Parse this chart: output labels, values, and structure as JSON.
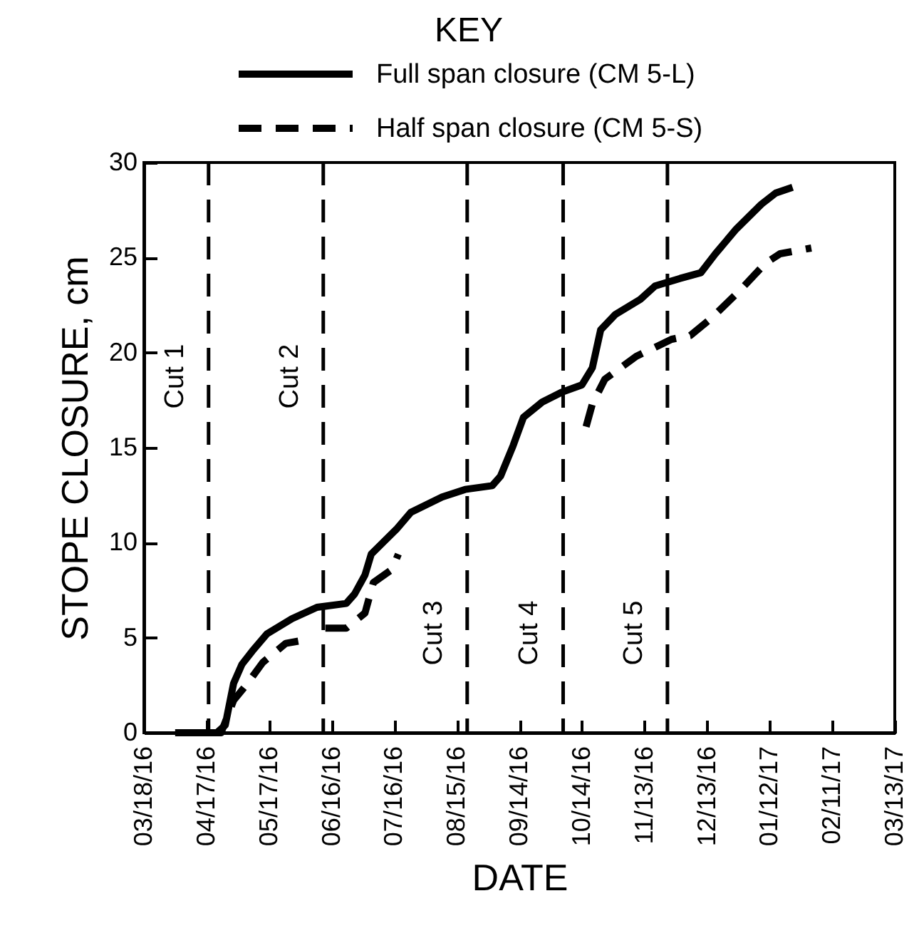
{
  "chart_data": {
    "type": "line",
    "legend_title": "KEY",
    "xlabel": "DATE",
    "ylabel": "STOPE CLOSURE, cm",
    "xlim": [
      "2016-03-18",
      "2017-03-13"
    ],
    "xticks": [
      {
        "value": "2016-03-18",
        "label": "03/18/16"
      },
      {
        "value": "2016-04-17",
        "label": "04/17/16"
      },
      {
        "value": "2016-05-17",
        "label": "05/17/16"
      },
      {
        "value": "2016-06-16",
        "label": "06/16/16"
      },
      {
        "value": "2016-07-16",
        "label": "07/16/16"
      },
      {
        "value": "2016-08-15",
        "label": "08/15/16"
      },
      {
        "value": "2016-09-14",
        "label": "09/14/16"
      },
      {
        "value": "2016-10-14",
        "label": "10/14/16"
      },
      {
        "value": "2016-11-13",
        "label": "11/13/16"
      },
      {
        "value": "2016-12-13",
        "label": "12/13/16"
      },
      {
        "value": "2017-01-12",
        "label": "01/12/17"
      },
      {
        "value": "2017-02-11",
        "label": "02/11/17"
      },
      {
        "value": "2017-03-13",
        "label": "03/13/17"
      }
    ],
    "ylim": [
      0,
      30
    ],
    "yticks": [
      0,
      5,
      10,
      15,
      20,
      25,
      30
    ],
    "grid": false,
    "legend": "top",
    "marker": "none",
    "series": [
      {
        "name": "Full span closure (CM 5-L)",
        "color": "#000000",
        "line_style": "solid",
        "x": [
          "2016-04-02",
          "2016-04-22",
          "2016-04-26",
          "2016-04-30",
          "2016-05-04",
          "2016-05-09",
          "2016-05-16",
          "2016-05-28",
          "2016-06-09",
          "2016-06-23",
          "2016-06-27",
          "2016-07-02",
          "2016-07-05",
          "2016-07-17",
          "2016-07-24",
          "2016-08-08",
          "2016-08-19",
          "2016-09-01",
          "2016-09-05",
          "2016-09-11",
          "2016-09-16",
          "2016-09-25",
          "2016-10-04",
          "2016-10-14",
          "2016-10-19",
          "2016-10-23",
          "2016-10-30",
          "2016-11-11",
          "2016-11-18",
          "2016-11-30",
          "2016-12-10",
          "2016-12-17",
          "2016-12-27",
          "2017-01-08",
          "2017-01-15",
          "2017-01-23"
        ],
        "values": [
          0,
          0,
          0.4,
          2.6,
          3.6,
          4.3,
          5.2,
          6.0,
          6.6,
          6.8,
          7.3,
          8.3,
          9.4,
          10.7,
          11.6,
          12.4,
          12.8,
          13.0,
          13.5,
          15.1,
          16.6,
          17.4,
          17.9,
          18.3,
          19.2,
          21.2,
          22.0,
          22.8,
          23.5,
          23.9,
          24.2,
          25.2,
          26.5,
          27.8,
          28.4,
          28.7
        ]
      },
      {
        "name": "Half span closure (CM 5-S)",
        "color": "#000000",
        "line_style": "dashed",
        "x": [
          "2016-04-02",
          "2016-04-24",
          "2016-04-30",
          "2016-05-06",
          "2016-05-14",
          "2016-05-25",
          "2016-06-04",
          "2016-06-08",
          "2016-06-13",
          "2016-06-23",
          "2016-07-02",
          "2016-07-06",
          "2016-07-15",
          "2016-07-18",
          "2016-09-01",
          "2016-10-16",
          "2016-10-19",
          "2016-10-25",
          "2016-11-09",
          "2016-11-26",
          "2016-12-05",
          "2016-12-15",
          "2016-12-29",
          "2017-01-10",
          "2017-01-17",
          "2017-02-01"
        ],
        "values": [
          0,
          0,
          1.7,
          2.5,
          3.7,
          4.7,
          4.9,
          null,
          5.5,
          5.5,
          6.3,
          7.9,
          8.6,
          9.4,
          null,
          16.1,
          17.3,
          18.6,
          19.8,
          20.7,
          20.9,
          21.8,
          23.3,
          24.7,
          25.2,
          25.5
        ]
      }
    ],
    "ref_lines": [
      {
        "axis": "x",
        "value": "2016-04-18",
        "label": "Cut 1",
        "color": "#000000",
        "line_style": "dashed"
      },
      {
        "axis": "x",
        "value": "2016-06-12",
        "label": "Cut 2",
        "color": "#000000",
        "line_style": "dashed"
      },
      {
        "axis": "x",
        "value": "2016-08-20",
        "label": "Cut 3",
        "color": "#000000",
        "line_style": "dashed"
      },
      {
        "axis": "x",
        "value": "2016-10-05",
        "label": "Cut 4",
        "color": "#000000",
        "line_style": "dashed"
      },
      {
        "axis": "x",
        "value": "2016-11-24",
        "label": "Cut 5",
        "color": "#000000",
        "line_style": "dashed"
      }
    ]
  }
}
